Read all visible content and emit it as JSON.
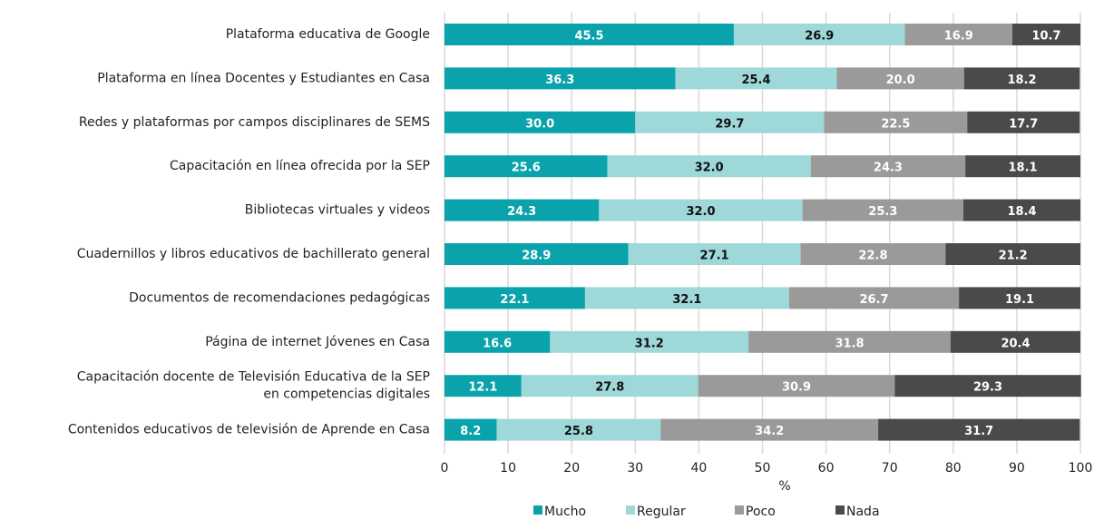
{
  "chart_data": {
    "type": "stacked_barh",
    "categories": [
      "Plataforma educativa de Google",
      "Plataforma en línea Docentes y Estudiantes en Casa",
      "Redes y plataformas por campos disciplinares de SEMS",
      "Capacitación en línea ofrecida por la SEP",
      "Bibliotecas virtuales y videos",
      "Cuadernillos y libros educativos de bachillerato general",
      "Documentos de recomendaciones pedagógicas",
      "Página de internet Jóvenes en Casa",
      "Capacitación docente de Televisión Educativa de la SEP\nen competencias digitales",
      "Contenidos educativos de televisión de Aprende en Casa"
    ],
    "series": [
      {
        "name": "Mucho",
        "color": "#0aa3ab",
        "label_color": "#ffffff",
        "values": [
          45.5,
          36.3,
          30.0,
          25.6,
          24.3,
          28.9,
          22.1,
          16.6,
          12.1,
          8.2
        ],
        "value_labels": [
          "45.5",
          "36.3",
          "30.0",
          "25.6",
          "24.3",
          "28.9",
          "22.1",
          "16.6",
          "12.1",
          "8.2"
        ]
      },
      {
        "name": "Regular",
        "color": "#9fd8d9",
        "label_color": "#111111",
        "values": [
          26.9,
          25.4,
          29.7,
          32.0,
          32.0,
          27.1,
          32.1,
          31.2,
          27.8,
          25.8
        ],
        "value_labels": [
          "26.9",
          "25.4",
          "29.7",
          "32.0",
          "32.0",
          "27.1",
          "32.1",
          "31.2",
          "27.8",
          "25.8"
        ]
      },
      {
        "name": "Poco",
        "color": "#9a9a9a",
        "label_color": "#ffffff",
        "values": [
          16.9,
          20.0,
          22.5,
          24.3,
          25.3,
          22.8,
          26.7,
          31.8,
          30.9,
          34.2
        ],
        "value_labels": [
          "16.9",
          "20.0",
          "22.5",
          "24.3",
          "25.3",
          "22.8",
          "26.7",
          "31.8",
          "30.9",
          "34.2"
        ]
      },
      {
        "name": "Nada",
        "color": "#4a4a4a",
        "label_color": "#ffffff",
        "values": [
          10.7,
          18.2,
          17.7,
          18.1,
          18.4,
          21.2,
          19.1,
          20.4,
          29.3,
          31.7
        ],
        "value_labels": [
          "10.7",
          "18.2",
          "17.7",
          "18.1",
          "18.4",
          "21.2",
          "19.1",
          "20.4",
          "29.3",
          "31.7"
        ]
      }
    ],
    "xlabel": "%",
    "xlim": [
      0,
      100
    ],
    "xticks": [
      0,
      10,
      20,
      30,
      40,
      50,
      60,
      70,
      80,
      90,
      100
    ],
    "grid": true,
    "legend": "bottom"
  }
}
